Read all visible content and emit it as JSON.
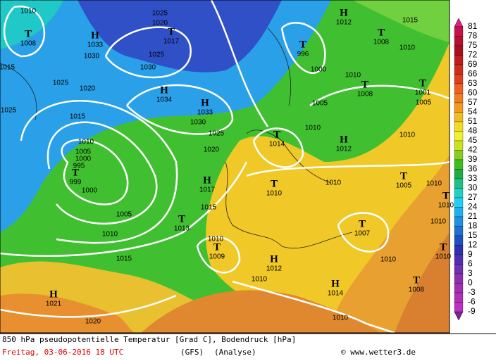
{
  "map": {
    "pressure_centers": [
      {
        "symbol": "T",
        "value": "1008"
      },
      {
        "symbol": "H",
        "value": "1033"
      },
      {
        "symbol": "T",
        "value": "1017"
      },
      {
        "symbol": "H",
        "value": "1034"
      },
      {
        "symbol": "H",
        "value": "1033"
      },
      {
        "symbol": "T",
        "value": "996"
      },
      {
        "symbol": "H",
        "value": "1012"
      },
      {
        "symbol": "T",
        "value": "1008"
      },
      {
        "symbol": "T",
        "value": "1008"
      },
      {
        "symbol": "T",
        "value": "1001"
      },
      {
        "symbol": "T",
        "value": "1014"
      },
      {
        "symbol": "H",
        "value": "1012"
      },
      {
        "symbol": "T",
        "value": "999"
      },
      {
        "symbol": "H",
        "value": "1017"
      },
      {
        "symbol": "T",
        "value": "1010"
      },
      {
        "symbol": "T",
        "value": "1005"
      },
      {
        "symbol": "T",
        "value": "1013"
      },
      {
        "symbol": "T",
        "value": "1009"
      },
      {
        "symbol": "H",
        "value": "1012"
      },
      {
        "symbol": "T",
        "value": "1007"
      },
      {
        "symbol": "H",
        "value": "1014"
      },
      {
        "symbol": "T",
        "value": "1008"
      },
      {
        "symbol": "H",
        "value": "1021"
      },
      {
        "symbol": "T",
        "value": "1010"
      },
      {
        "symbol": "T",
        "value": "1010"
      }
    ],
    "isobar_labels": [
      "1010",
      "1025",
      "1020",
      "1030",
      "1025",
      "1030",
      "1015",
      "1025",
      "1020",
      "1025",
      "1015",
      "1030",
      "1025",
      "1020",
      "1010",
      "1005",
      "1000",
      "995",
      "1000",
      "1005",
      "1010",
      "1015",
      "1015",
      "1010",
      "1010",
      "1000",
      "1010",
      "1005",
      "1010",
      "1010",
      "1010",
      "1010",
      "1010",
      "1010",
      "1020",
      "1015",
      "1010",
      "1005",
      "1010"
    ]
  },
  "colorbar": {
    "ticks": [
      81,
      78,
      75,
      72,
      69,
      66,
      63,
      60,
      57,
      54,
      51,
      48,
      45,
      42,
      39,
      36,
      33,
      30,
      27,
      24,
      21,
      18,
      15,
      12,
      9,
      6,
      3,
      0,
      -3,
      -6,
      -9
    ],
    "colors": [
      "#c8104a",
      "#b81030",
      "#a81020",
      "#c01c1c",
      "#d02c1c",
      "#e0401c",
      "#f06020",
      "#f07c20",
      "#f09c20",
      "#f0bc20",
      "#f0dc20",
      "#f0f030",
      "#c8e420",
      "#88cc20",
      "#40bc20",
      "#20ac44",
      "#20c084",
      "#20d0c0",
      "#20d0f0",
      "#20b0f0",
      "#2090e0",
      "#2070d0",
      "#2050c0",
      "#3030b0",
      "#5030b0",
      "#7030b0",
      "#8c30b0",
      "#a030b0",
      "#b030b8",
      "#c030c0"
    ]
  },
  "footer": {
    "title": "850 hPa pseudopotentielle Temperatur [Grad C], Bodendruck [hPa]",
    "date": "Freitag, 03-06-2016  18 UTC",
    "model": "(GFS)",
    "analysis": "(Analyse)",
    "credit": "© www.wetter3.de"
  }
}
